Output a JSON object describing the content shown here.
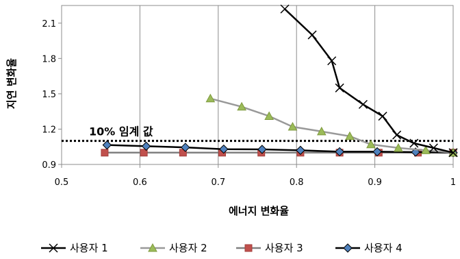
{
  "chart_data": {
    "type": "line",
    "xlabel": "에너지 변화율",
    "ylabel": "지연 변화율",
    "xlim": [
      0.5,
      1.0
    ],
    "ylim": [
      0.9,
      2.25
    ],
    "x_ticks": [
      0.5,
      0.6,
      0.7,
      0.8,
      0.9,
      1.0
    ],
    "x_tick_labels": [
      "0.5",
      "0.6",
      "0.7",
      "0.8",
      "0.9",
      "1"
    ],
    "y_ticks": [
      0.9,
      1.2,
      1.5,
      1.8,
      2.1
    ],
    "y_tick_labels": [
      "0.9",
      "1.2",
      "1.5",
      "1.8",
      "2.1"
    ],
    "grid": "vertical",
    "legend_position": "bottom",
    "threshold": {
      "value": 1.1,
      "label": "10% 임계 값",
      "style": "dotted",
      "color": "#000000"
    },
    "series": [
      {
        "name": "사용자 1",
        "color": "#000000",
        "marker": "x",
        "points": [
          [
            0.785,
            2.22
          ],
          [
            0.82,
            2.0
          ],
          [
            0.845,
            1.78
          ],
          [
            0.855,
            1.55
          ],
          [
            0.885,
            1.41
          ],
          [
            0.91,
            1.31
          ],
          [
            0.928,
            1.15
          ],
          [
            0.95,
            1.08
          ],
          [
            0.975,
            1.04
          ],
          [
            1.0,
            1.0
          ]
        ]
      },
      {
        "name": "사용자 2",
        "color": "#999999",
        "marker": "triangle",
        "marker_fill": "#9BBB59",
        "points": [
          [
            0.69,
            1.46
          ],
          [
            0.73,
            1.39
          ],
          [
            0.765,
            1.31
          ],
          [
            0.795,
            1.22
          ],
          [
            0.832,
            1.18
          ],
          [
            0.868,
            1.14
          ],
          [
            0.895,
            1.07
          ],
          [
            0.93,
            1.04
          ],
          [
            0.965,
            1.02
          ],
          [
            1.0,
            1.0
          ]
        ]
      },
      {
        "name": "사용자 3",
        "color": "#808080",
        "marker": "square",
        "marker_fill": "#C0504D",
        "points": [
          [
            0.555,
            1.0
          ],
          [
            0.605,
            1.0
          ],
          [
            0.655,
            1.0
          ],
          [
            0.705,
            1.0
          ],
          [
            0.755,
            1.0
          ],
          [
            0.805,
            1.0
          ],
          [
            0.855,
            1.0
          ],
          [
            0.905,
            1.0
          ],
          [
            0.955,
            1.0
          ],
          [
            1.0,
            1.0
          ]
        ]
      },
      {
        "name": "사용자 4",
        "color": "#000000",
        "marker": "diamond",
        "marker_fill": "#4F81BD",
        "points": [
          [
            0.558,
            1.065
          ],
          [
            0.608,
            1.055
          ],
          [
            0.658,
            1.045
          ],
          [
            0.707,
            1.03
          ],
          [
            0.756,
            1.028
          ],
          [
            0.805,
            1.02
          ],
          [
            0.855,
            1.008
          ],
          [
            0.903,
            1.008
          ],
          [
            0.952,
            1.005
          ],
          [
            1.0,
            1.0
          ]
        ]
      }
    ]
  }
}
